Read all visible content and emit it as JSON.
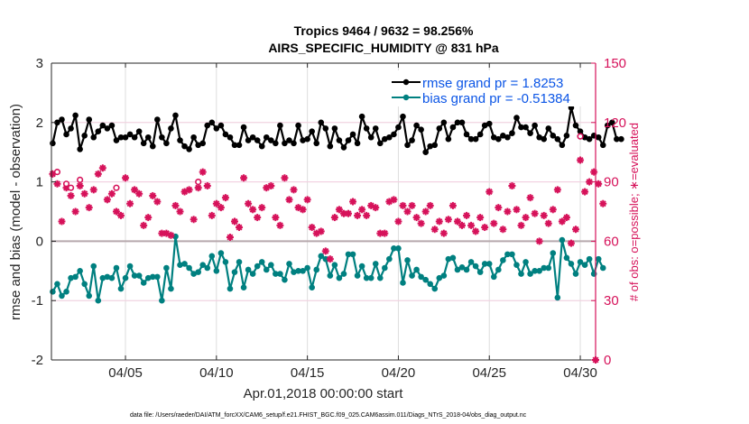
{
  "chart_data": {
    "type": "line",
    "title": "Tropics 9464 / 9632 = 98.256%",
    "subtitle": "AIRS_SPECIFIC_HUMIDITY @ 831 hPa",
    "xlabel": "Apr.01,2018 00:00:00 start",
    "ylabel": "rmse and bias (model - observation)",
    "ylabel_right": "# of obs: o=possible; ∗=evaluated",
    "ylim": [
      -2,
      3
    ],
    "ylim_right": [
      0,
      150
    ],
    "yticks": [
      "3",
      "2",
      "1",
      "0",
      "-1",
      "-2"
    ],
    "yticks_right": [
      "150",
      "120",
      "90",
      "60",
      "30",
      "0"
    ],
    "xticks": [
      "04/05",
      "04/10",
      "04/15",
      "04/20",
      "04/25",
      "04/30"
    ],
    "xtick_days": [
      5,
      10,
      15,
      20,
      25,
      30
    ],
    "x_start_day": 1,
    "x_step_days": 0.25,
    "grid": true,
    "legend_position": "top-right",
    "footer": "data file: /Users/raeder/DAI/ATM_forcXX/CAM6_setup/f.e21.FHIST_BGC.f09_025.CAM6assim.011/Diags_NTrS_2018-04/obs_diag_output.nc",
    "series": [
      {
        "name": "rmse grand pr = 1.8253",
        "color": "#000000",
        "axis": "left",
        "values": [
          1.65,
          2.0,
          2.05,
          1.8,
          1.9,
          2.12,
          1.55,
          1.78,
          2.05,
          1.75,
          1.85,
          1.95,
          1.9,
          1.95,
          1.7,
          1.75,
          1.75,
          1.8,
          1.75,
          1.85,
          1.65,
          1.75,
          1.6,
          2.05,
          1.75,
          1.65,
          1.9,
          2.12,
          1.7,
          1.6,
          1.55,
          1.75,
          1.62,
          1.65,
          1.95,
          2.0,
          1.9,
          1.95,
          1.8,
          1.75,
          1.62,
          1.62,
          1.92,
          1.7,
          1.75,
          1.7,
          1.6,
          1.75,
          1.7,
          1.65,
          1.95,
          1.65,
          1.7,
          1.65,
          1.95,
          1.7,
          1.72,
          1.85,
          1.65,
          2.0,
          1.9,
          1.6,
          1.9,
          1.7,
          1.58,
          1.7,
          1.8,
          1.65,
          2.1,
          1.9,
          1.75,
          1.9,
          1.65,
          1.72,
          1.75,
          1.8,
          1.92,
          2.1,
          1.62,
          1.7,
          1.95,
          1.88,
          1.5,
          1.6,
          1.62,
          1.9,
          2.0,
          1.72,
          1.92,
          2.0,
          2.0,
          1.8,
          1.72,
          1.72,
          1.8,
          1.95,
          1.98,
          1.75,
          1.72,
          1.78,
          1.75,
          1.82,
          2.08,
          1.92,
          1.92,
          1.82,
          1.95,
          1.75,
          1.72,
          1.9,
          1.78,
          1.72,
          1.62,
          1.78,
          2.25,
          1.95,
          1.85,
          1.75,
          1.72,
          1.78,
          1.75,
          1.62,
          1.95,
          2.0,
          1.72,
          1.72
        ],
        "marker": "filled-circle"
      },
      {
        "name": "bias grand pr = -0.51384",
        "color": "#008080",
        "axis": "left",
        "values": [
          -0.85,
          -0.72,
          -0.92,
          -0.85,
          -0.62,
          -0.6,
          -0.5,
          -0.72,
          -0.92,
          -0.42,
          -1.0,
          -0.62,
          -0.6,
          -0.62,
          -0.45,
          -0.8,
          -0.62,
          -0.42,
          -0.58,
          -0.58,
          -0.7,
          -0.62,
          -0.6,
          -0.6,
          -1.0,
          -0.45,
          -0.8,
          0.08,
          -0.4,
          -0.38,
          -0.45,
          -0.55,
          -0.52,
          -0.4,
          -0.45,
          -0.25,
          -0.5,
          -0.2,
          -0.35,
          -0.8,
          -0.52,
          -0.35,
          -0.78,
          -0.48,
          -0.55,
          -0.42,
          -0.35,
          -0.48,
          -0.4,
          -0.55,
          -0.55,
          -0.65,
          -0.38,
          -0.52,
          -0.5,
          -0.5,
          -0.45,
          -0.78,
          -0.48,
          -0.25,
          -0.3,
          -0.58,
          -0.4,
          -0.62,
          -0.55,
          -0.22,
          -0.22,
          -0.58,
          -0.42,
          -0.62,
          -0.62,
          -0.38,
          -0.62,
          -0.45,
          -0.3,
          -0.12,
          -0.12,
          -0.7,
          -0.32,
          -0.58,
          -0.48,
          -0.6,
          -0.65,
          -0.72,
          -0.8,
          -0.62,
          -0.58,
          -0.3,
          -0.28,
          -0.48,
          -0.44,
          -0.48,
          -0.35,
          -0.42,
          -0.52,
          -0.38,
          -0.38,
          -0.6,
          -0.48,
          -0.32,
          -0.22,
          -0.22,
          -0.4,
          -0.55,
          -0.35,
          -0.55,
          -0.5,
          -0.5,
          -0.45,
          -0.45,
          -0.2,
          -0.95,
          0.02,
          -0.28,
          -0.38,
          -0.55,
          -0.35,
          -0.4,
          -0.3,
          -0.55,
          -0.3,
          -0.45
        ],
        "marker": "filled-circle"
      },
      {
        "name": "# obs evaluated",
        "color": "#d6125a",
        "axis": "right",
        "values": [
          94,
          89,
          70,
          87,
          83,
          75,
          88,
          84,
          77,
          86,
          94,
          97,
          81,
          84,
          75,
          73,
          92,
          79,
          86,
          84,
          68,
          72,
          83,
          80,
          64,
          64,
          63,
          78,
          75,
          85,
          86,
          71,
          87,
          95,
          88,
          73,
          79,
          77,
          82,
          62,
          70,
          67,
          92,
          79,
          76,
          72,
          77,
          87,
          88,
          72,
          68,
          92,
          81,
          86,
          77,
          76,
          81,
          67,
          64,
          65,
          55,
          51,
          72,
          76,
          74,
          74,
          80,
          73,
          76,
          73,
          78,
          77,
          64,
          64,
          80,
          81,
          70,
          78,
          75,
          78,
          72,
          69,
          75,
          78,
          66,
          70,
          64,
          71,
          78,
          70,
          68,
          73,
          68,
          65,
          72,
          67,
          85,
          69,
          77,
          66,
          75,
          88,
          76,
          68,
          72,
          82,
          74,
          60,
          73,
          69,
          76,
          86,
          70,
          72,
          59,
          66,
          101,
          85,
          90,
          95,
          89,
          79
        ],
        "marker": "asterisk"
      },
      {
        "name": "# obs possible",
        "color": "#d6125a",
        "axis": "right",
        "values": [
          null,
          95,
          null,
          89,
          87,
          null,
          91,
          null,
          null,
          null,
          null,
          null,
          null,
          null,
          87,
          null,
          null,
          null,
          null,
          null,
          null,
          null,
          null,
          null,
          null,
          null,
          null,
          null,
          null,
          null,
          null,
          null,
          90,
          null,
          null,
          null,
          null,
          null,
          null,
          null,
          null,
          null,
          null,
          null,
          null,
          null,
          null,
          null,
          null,
          null,
          null,
          null,
          null,
          null,
          null,
          null,
          null,
          null,
          null,
          null,
          null,
          null,
          null,
          null,
          null,
          null,
          null,
          null,
          null,
          null,
          null,
          null,
          null,
          null,
          null,
          null,
          null,
          null,
          null,
          null,
          null,
          null,
          null,
          null,
          null,
          null,
          null,
          null,
          null,
          null,
          null,
          null,
          null,
          null,
          null,
          null,
          null,
          null,
          null,
          null,
          null,
          null,
          null,
          null,
          null,
          null,
          null,
          null,
          null,
          null,
          null,
          null,
          null,
          null,
          null,
          null,
          113,
          null,
          null,
          null,
          null,
          null
        ]
      }
    ]
  }
}
